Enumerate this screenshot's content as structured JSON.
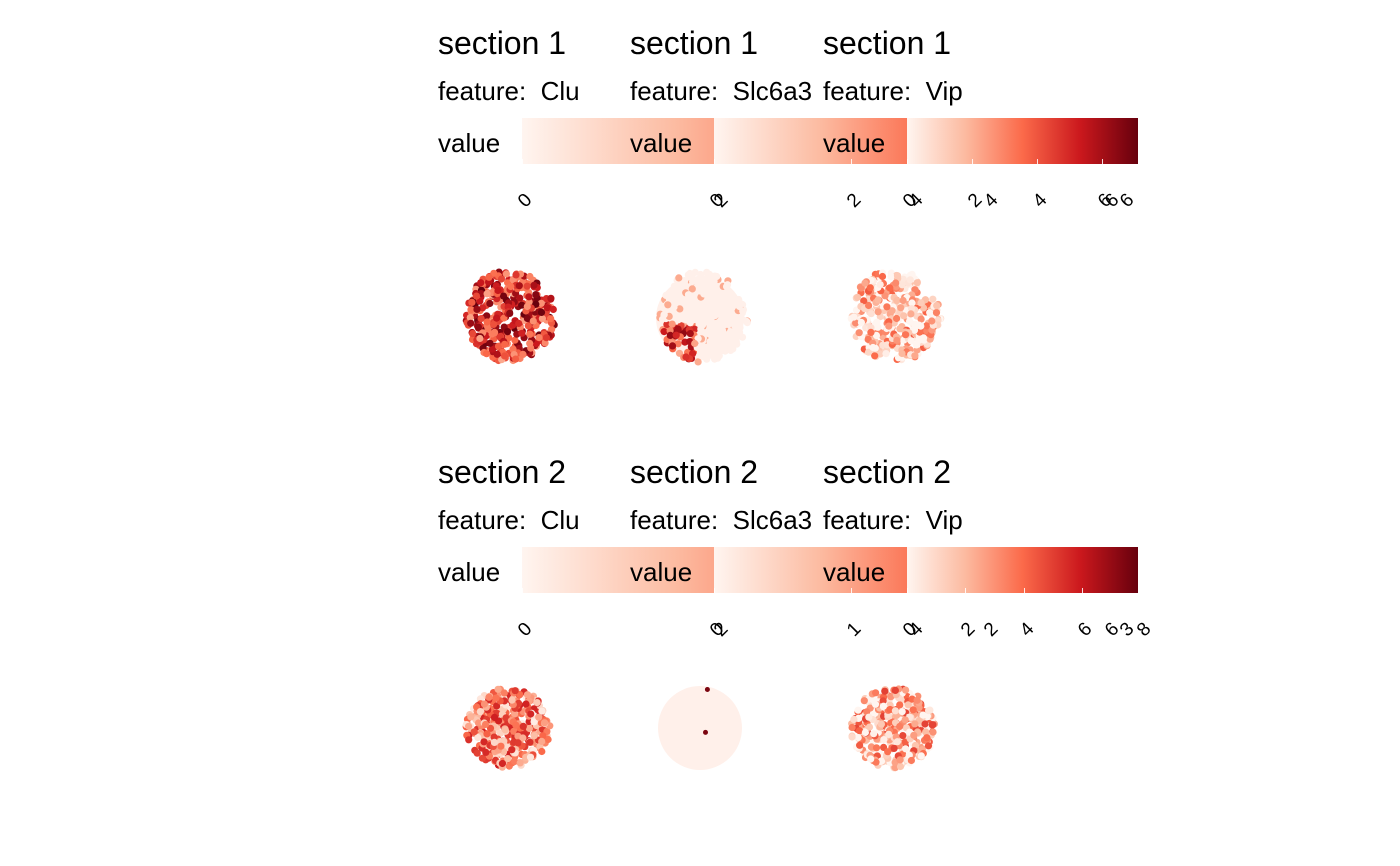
{
  "chart_data": [
    {
      "type": "heatmap",
      "title": "section 1",
      "subtitle_label": "feature:",
      "feature": "Clu",
      "legend_label": "value",
      "ticks": [
        "0",
        "2",
        "4",
        "6"
      ],
      "domain": [
        0,
        6.3
      ],
      "level": 0.62,
      "shape": "heart"
    },
    {
      "type": "heatmap",
      "title": "section 1",
      "subtitle_label": "feature:",
      "feature": "Slc6a3",
      "legend_label": "value",
      "ticks": [
        "0",
        "2",
        "4",
        "6"
      ],
      "domain": [
        0,
        6.2
      ],
      "level": 0.06,
      "shape": "slc"
    },
    {
      "type": "heatmap",
      "title": "section 1",
      "subtitle_label": "feature:",
      "feature": "Vip",
      "legend_label": "value",
      "ticks": [
        "0",
        "2",
        "4",
        "6"
      ],
      "domain": [
        0,
        7.1
      ],
      "level": 0.18,
      "shape": "heart"
    },
    {
      "type": "heatmap",
      "title": "section 2",
      "subtitle_label": "feature:",
      "feature": "Clu",
      "legend_label": "value",
      "ticks": [
        "0",
        "2",
        "4",
        "6"
      ],
      "domain": [
        0,
        6.3
      ],
      "level": 0.35,
      "shape": "round"
    },
    {
      "type": "heatmap",
      "title": "section 2",
      "subtitle_label": "feature:",
      "feature": "Slc6a3",
      "legend_label": "value",
      "ticks": [
        "0",
        "1",
        "2",
        "3"
      ],
      "domain": [
        0,
        3.1
      ],
      "level": 0.0,
      "shape": "round-flat"
    },
    {
      "type": "heatmap",
      "title": "section 2",
      "subtitle_label": "feature:",
      "feature": "Vip",
      "legend_label": "value",
      "ticks": [
        "0",
        "2",
        "4",
        "6",
        "8"
      ],
      "domain": [
        0,
        7.9
      ],
      "level": 0.25,
      "shape": "round"
    }
  ],
  "colors": {
    "low": "#fff5f0",
    "mid1": "#fcbba1",
    "mid2": "#fb6a4a",
    "mid3": "#cb181d",
    "high": "#67000d"
  }
}
